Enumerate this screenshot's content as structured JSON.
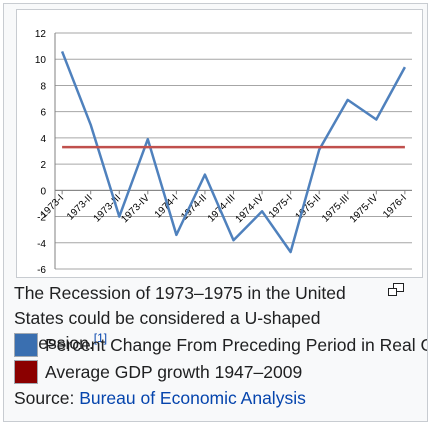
{
  "chart_data": {
    "type": "line",
    "categories": [
      "1973-I",
      "1973-II",
      "1973-III",
      "1973-IV",
      "1974-I",
      "1974-II",
      "1974-III",
      "1974-IV",
      "1975-I",
      "1975-II",
      "1975-III",
      "1975-IV",
      "1976-I"
    ],
    "x": [
      1,
      2,
      3,
      4,
      5,
      6,
      7,
      8,
      9,
      10,
      11,
      12,
      13,
      14,
      15,
      16,
      17,
      18,
      19,
      20,
      21,
      22,
      23,
      24,
      25
    ],
    "series": [
      {
        "name": "Percent Change From Preceding Period in Real Gross Domestic Product",
        "color": "#4f81bd",
        "values": [
          10.6,
          null,
          5.0,
          null,
          -2.0,
          null,
          3.9,
          null,
          -3.4,
          null,
          1.2,
          null,
          -3.8,
          null,
          -1.6,
          null,
          -4.7,
          null,
          3.1,
          null,
          6.9,
          null,
          5.4,
          null,
          9.4
        ]
      },
      {
        "name": "Average GDP growth 1947–2009",
        "color": "#c0504d",
        "values": [
          3.3,
          3.3,
          3.3,
          3.3,
          3.3,
          3.3,
          3.3,
          3.3,
          3.3,
          3.3,
          3.3,
          3.3,
          3.3,
          3.3,
          3.3,
          3.3,
          3.3,
          3.3,
          3.3,
          3.3,
          3.3,
          3.3,
          3.3,
          3.3,
          3.3
        ]
      }
    ],
    "ylim": [
      -6,
      12
    ],
    "yticks": [
      -6,
      -4,
      -2,
      0,
      2,
      4,
      6,
      8,
      10,
      12
    ],
    "grid": true,
    "title": "",
    "xlabel": "",
    "ylabel": ""
  },
  "caption": {
    "text": "The Recession of 1973–1975 in the United States could be considered a U-shaped recession.",
    "ref": "[1]",
    "magnify_icon": "magnify-clip-icon"
  },
  "legend": [
    {
      "label": "Percent Change From Preceding Period in Real Gross Domestic Product",
      "color": "#3a6fb0"
    },
    {
      "label": "Average GDP growth 1947–2009",
      "color": "#8b0000"
    }
  ],
  "source": {
    "prefix": "Source: ",
    "link": "Bureau of Economic Analysis"
  }
}
